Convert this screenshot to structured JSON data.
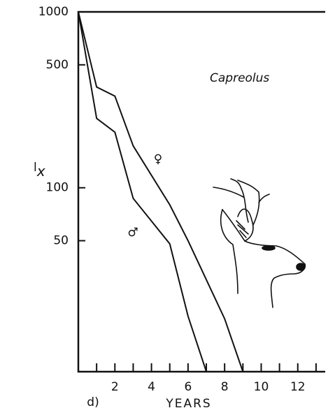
{
  "chart_data": {
    "type": "line",
    "title": "Capreolus",
    "ylabel": "l",
    "ylabel_sub": "x",
    "xlabel": "YEARS",
    "panel": "d)",
    "log_y": true,
    "xlim": [
      0,
      13.5
    ],
    "xticks": [
      2,
      4,
      6,
      8,
      10,
      12
    ],
    "xminor": [
      1,
      3,
      5,
      7,
      9,
      11,
      13
    ],
    "ylim": [
      9,
      1000
    ],
    "yticks": [
      1000,
      500,
      100,
      50
    ],
    "series": [
      {
        "name": "♀",
        "color": "#111111",
        "x": [
          0,
          1,
          2,
          3,
          5,
          6,
          8,
          9
        ],
        "values": [
          1000,
          374,
          332,
          173,
          80,
          50,
          18,
          9
        ]
      },
      {
        "name": "♂",
        "color": "#111111",
        "x": [
          0,
          1,
          2,
          3,
          5,
          6,
          7
        ],
        "values": [
          1000,
          248,
          207,
          87,
          48,
          18.6,
          9
        ]
      }
    ]
  }
}
